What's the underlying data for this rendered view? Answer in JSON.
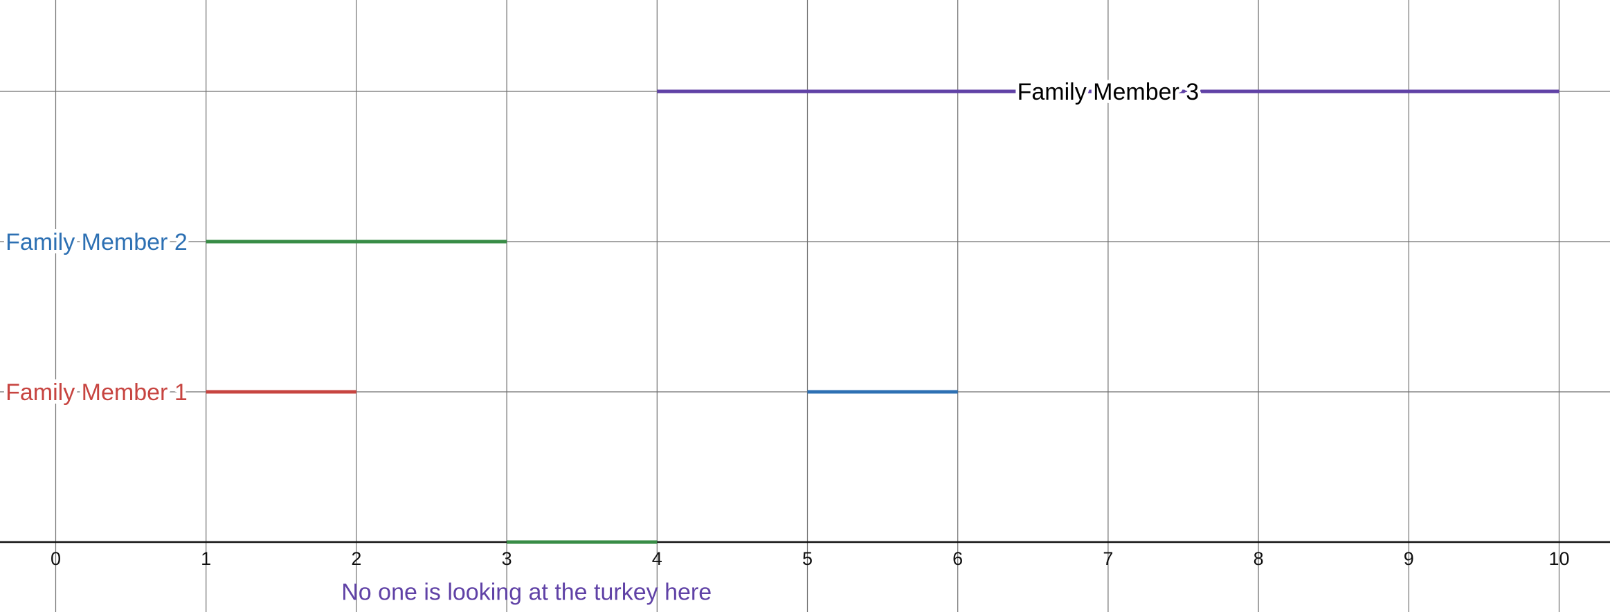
{
  "chart_data": {
    "type": "line",
    "xlim": [
      -0.37,
      10.34
    ],
    "ylim": [
      0,
      3.6
    ],
    "grid": true,
    "x_ticks": [
      0,
      1,
      2,
      3,
      4,
      5,
      6,
      7,
      8,
      9,
      10
    ],
    "y_grid": [
      0,
      1,
      2,
      3
    ],
    "segments": [
      {
        "x": [
          1,
          2
        ],
        "y": 1,
        "color": "#c74440"
      },
      {
        "x": [
          5,
          6
        ],
        "y": 1,
        "color": "#2d70b3"
      },
      {
        "x": [
          1,
          3
        ],
        "y": 2,
        "color": "#388c46"
      },
      {
        "x": [
          3,
          4
        ],
        "y": 0,
        "color": "#388c46"
      },
      {
        "x": [
          4,
          10
        ],
        "y": 3,
        "color": "#6042a6"
      }
    ],
    "labels": [
      {
        "text": "Family Member 1",
        "x": -0.37,
        "y": 1,
        "anchor": "left",
        "color": "#c74440"
      },
      {
        "text": "Family Member 2",
        "x": -0.37,
        "y": 2,
        "anchor": "left",
        "color": "#2d70b3"
      },
      {
        "text": "Family Member 3",
        "x": 7,
        "y": 3,
        "anchor": "center",
        "color": "#000000"
      }
    ],
    "annotations": [
      {
        "text": "No one is looking at the turkey here",
        "x": 3.5,
        "y": -0.33,
        "color": "#6042a6"
      }
    ]
  }
}
